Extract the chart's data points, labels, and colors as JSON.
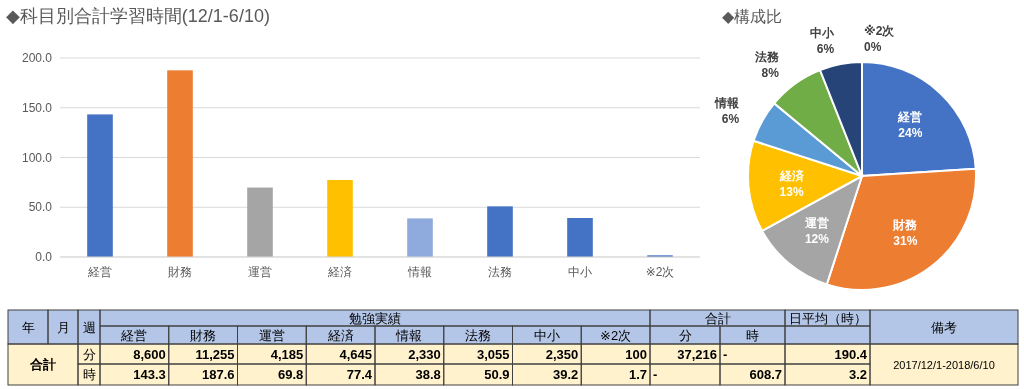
{
  "chart_data": [
    {
      "type": "bar",
      "title": "◆科目別合計学習時間(12/1-6/10)",
      "categories": [
        "経営",
        "財務",
        "運営",
        "経済",
        "情報",
        "法務",
        "中小",
        "※2次"
      ],
      "values": [
        143.3,
        187.6,
        69.8,
        77.4,
        38.8,
        50.9,
        39.2,
        1.7
      ],
      "colors": [
        "#4472c4",
        "#ed7d31",
        "#a5a5a5",
        "#ffc000",
        "#8faadc",
        "#4472c4",
        "#4472c4",
        "#4472c4"
      ],
      "ylim": [
        0,
        200
      ],
      "yticks": [
        {
          "value": 0,
          "label": "0.0"
        },
        {
          "value": 50,
          "label": "50.0"
        },
        {
          "value": 100,
          "label": "100.0"
        },
        {
          "value": 150,
          "label": "150.0"
        },
        {
          "value": 200,
          "label": "200.0"
        }
      ],
      "grid": "y"
    },
    {
      "type": "pie",
      "title": "◆構成比",
      "categories": [
        "経営",
        "財務",
        "運営",
        "経済",
        "情報",
        "法務",
        "中小",
        "※2次"
      ],
      "values": [
        24,
        31,
        12,
        13,
        6,
        8,
        6,
        0
      ],
      "colors": [
        "#4472c4",
        "#ed7d31",
        "#a5a5a5",
        "#ffc000",
        "#5b9bd5",
        "#70ad47",
        "#264478",
        "#9e480e"
      ],
      "value_labels": [
        "24%",
        "31%",
        "12%",
        "13%",
        "6%",
        "8%",
        "6%",
        "0%"
      ]
    },
    {
      "type": "other",
      "annotations": [
        "年",
        "月",
        "週",
        "勉強実績",
        "合計",
        "日平均（時）",
        "備考",
        "経営",
        "財務",
        "運営",
        "経済",
        "情報",
        "法務",
        "中小",
        "※2次",
        "分",
        "時",
        "合計",
        "分",
        "8,600",
        "11,255",
        "4,185",
        "4,645",
        "2,330",
        "3,055",
        "2,350",
        "100",
        "37,216",
        "-",
        "190.4",
        "2017/12/1-2018/6/10",
        "時",
        "143.3",
        "187.6",
        "69.8",
        "77.4",
        "38.8",
        "50.9",
        "39.2",
        "1.7",
        "-",
        "608.7",
        "3.2"
      ]
    }
  ]
}
